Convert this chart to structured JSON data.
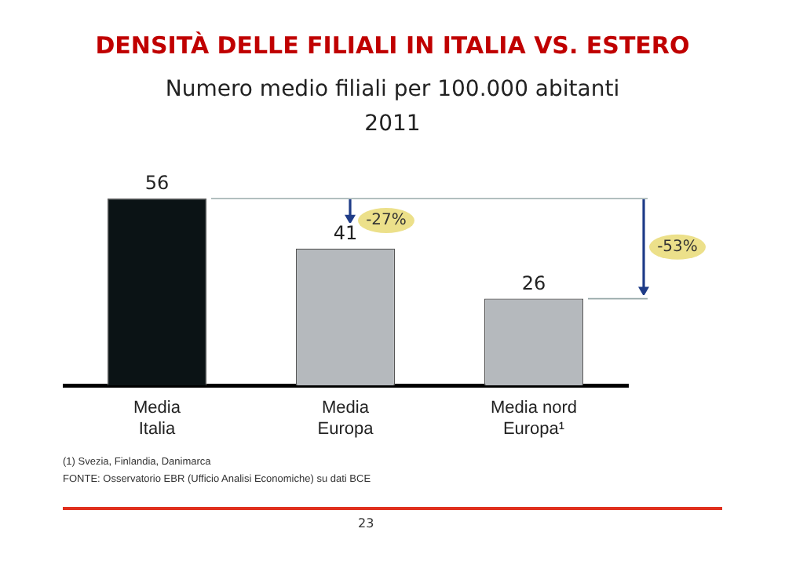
{
  "chart_data": {
    "type": "bar",
    "title": "DENSITÀ DELLE FILIALI IN ITALIA VS. ESTERO",
    "subtitle": "Numero medio filiali per 100.000 abitanti\n2011",
    "categories": [
      "Media Italia",
      "Media Europa",
      "Media nord Europa¹"
    ],
    "values": [
      56,
      41,
      26
    ],
    "colors": [
      "#0b1315",
      "#b5b9bd",
      "#b5b9bd"
    ],
    "ref_lines": [
      {
        "axis": "y",
        "value": 56,
        "color": "#99aaaa"
      },
      {
        "axis": "y",
        "value": 26,
        "color": "#99aaaa"
      }
    ],
    "data_labels": true,
    "grid": false,
    "legend": false,
    "tick_labels": "x",
    "annotations": [
      "-27%",
      "-53%",
      "(1) Svezia, Finlandia, Danimarca",
      "FONTE: Osservatorio EBR (Ufficio Analisi Economiche) su dati BCE",
      "23"
    ]
  }
}
